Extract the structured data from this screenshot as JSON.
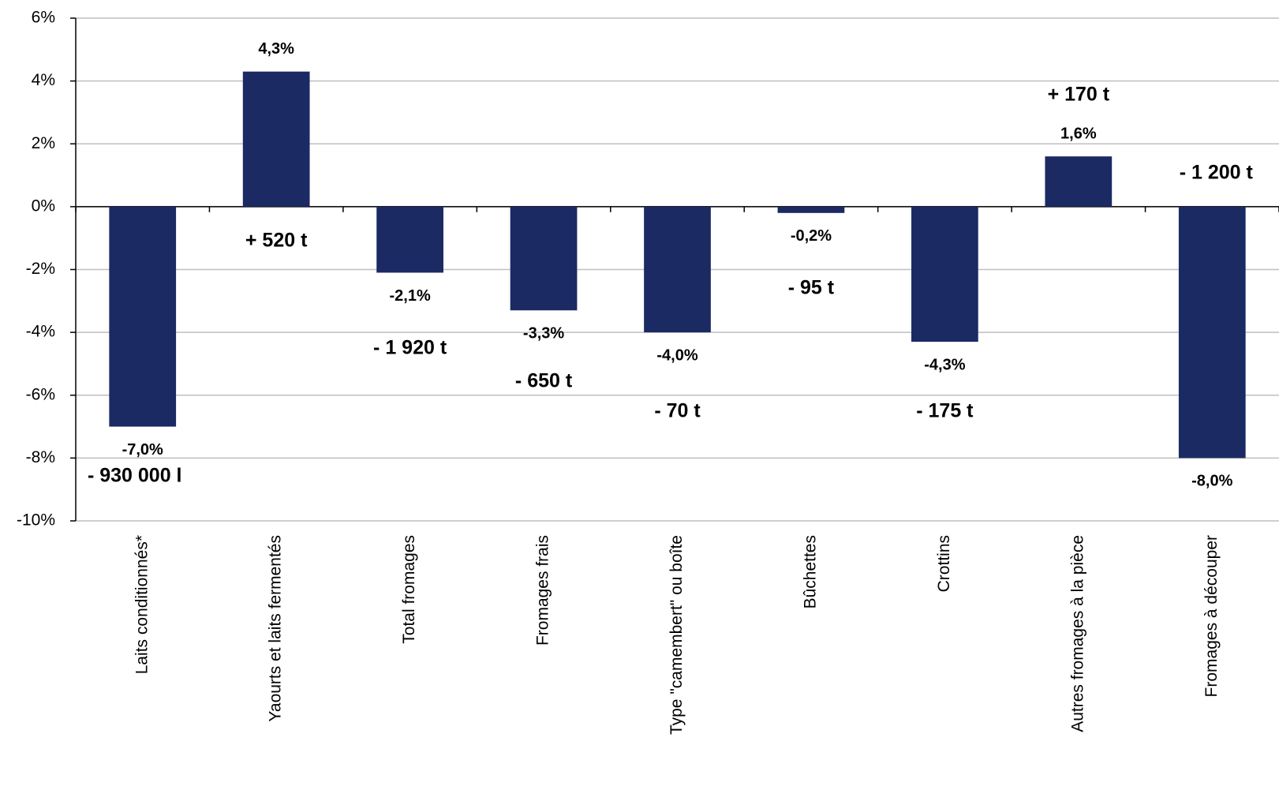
{
  "chart_data": {
    "type": "bar",
    "categories": [
      "Laits conditionnés*",
      "Yaourts et laits fermentés",
      "Total fromages",
      "Fromages frais",
      "Type \"camembert\" ou boîte",
      "Bûchettes",
      "Crottins",
      "Autres fromages à la pièce",
      "Fromages à découper"
    ],
    "values": [
      -7.0,
      4.3,
      -2.1,
      -3.3,
      -4.0,
      -0.2,
      -4.3,
      1.6,
      -8.0
    ],
    "value_labels": [
      "-7,0%",
      "4,3%",
      "-2,1%",
      "-3,3%",
      "-4,0%",
      "-0,2%",
      "-4,3%",
      "1,6%",
      "-8,0%"
    ],
    "color": "#1b2a63",
    "annotations": [
      "- 930 000 l",
      "+ 520 t",
      "- 1 920 t",
      "- 650 t",
      "- 70 t",
      "- 95 t",
      "- 175 t",
      "+ 170 t",
      "- 1 200 t"
    ],
    "annotation_colors": [
      "#3a7dc0",
      "#1b2a63",
      "#3a7dc0",
      "#3a7dc0",
      "#3a7dc0",
      "#3a7dc0",
      "#3a7dc0",
      "#1b2a63",
      "#3a7dc0"
    ],
    "ylim": [
      -10,
      6
    ],
    "yticks": [
      {
        "value": -10,
        "label": "-10%"
      },
      {
        "value": -8,
        "label": "-8%"
      },
      {
        "value": -6,
        "label": "-6%"
      },
      {
        "value": -4,
        "label": "-4%"
      },
      {
        "value": -2,
        "label": "-2%"
      },
      {
        "value": 0,
        "label": "0%"
      },
      {
        "value": 2,
        "label": "2%"
      },
      {
        "value": 4,
        "label": "4%"
      },
      {
        "value": 6,
        "label": "6%"
      }
    ],
    "grid": true
  }
}
